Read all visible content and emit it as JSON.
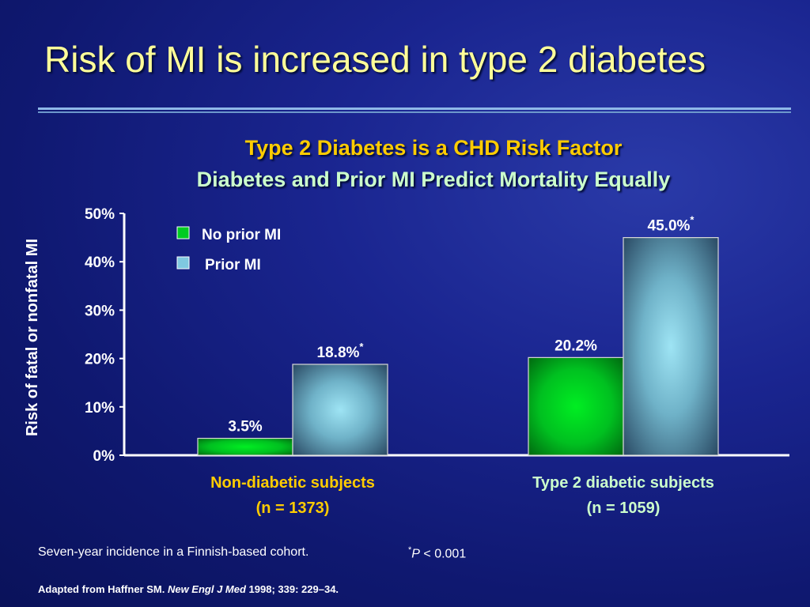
{
  "slide": {
    "title": "Risk of MI is increased in type 2 diabetes",
    "subtitle1": "Type 2 Diabetes is a CHD Risk Factor",
    "subtitle2": "Diabetes and Prior MI Predict Mortality Equally"
  },
  "chart_data": {
    "type": "bar",
    "ylabel": "Risk of fatal or nonfatal MI",
    "ylim": [
      0,
      50
    ],
    "yticks": [
      "0%",
      "10%",
      "20%",
      "30%",
      "40%",
      "50%"
    ],
    "categories": [
      "Non-diabetic subjects\n(n = 1373)",
      "Type 2 diabetic subjects\n(n = 1059)"
    ],
    "series": [
      {
        "name": "No prior MI",
        "color": "#00cc22",
        "values": [
          3.5,
          20.2
        ],
        "labels": [
          "3.5%",
          "20.2%"
        ],
        "starred": [
          false,
          false
        ]
      },
      {
        "name": "Prior MI",
        "color": "#7fc8e0",
        "values": [
          18.8,
          45.0
        ],
        "labels": [
          "18.8%",
          "45.0%"
        ],
        "starred": [
          true,
          true
        ]
      }
    ],
    "star_symbol": "*",
    "legend_position": "top-left",
    "grid": false
  },
  "footer": {
    "note": "Seven-year incidence in a Finnish-based cohort.",
    "pvalue_star": "*",
    "pvalue_p": "P",
    "pvalue_rest": " < 0.001",
    "citation_pre": "Adapted from Haffner SM. ",
    "citation_journal": "New Engl J Med",
    "citation_post": " 1998; 339: 229–34."
  }
}
